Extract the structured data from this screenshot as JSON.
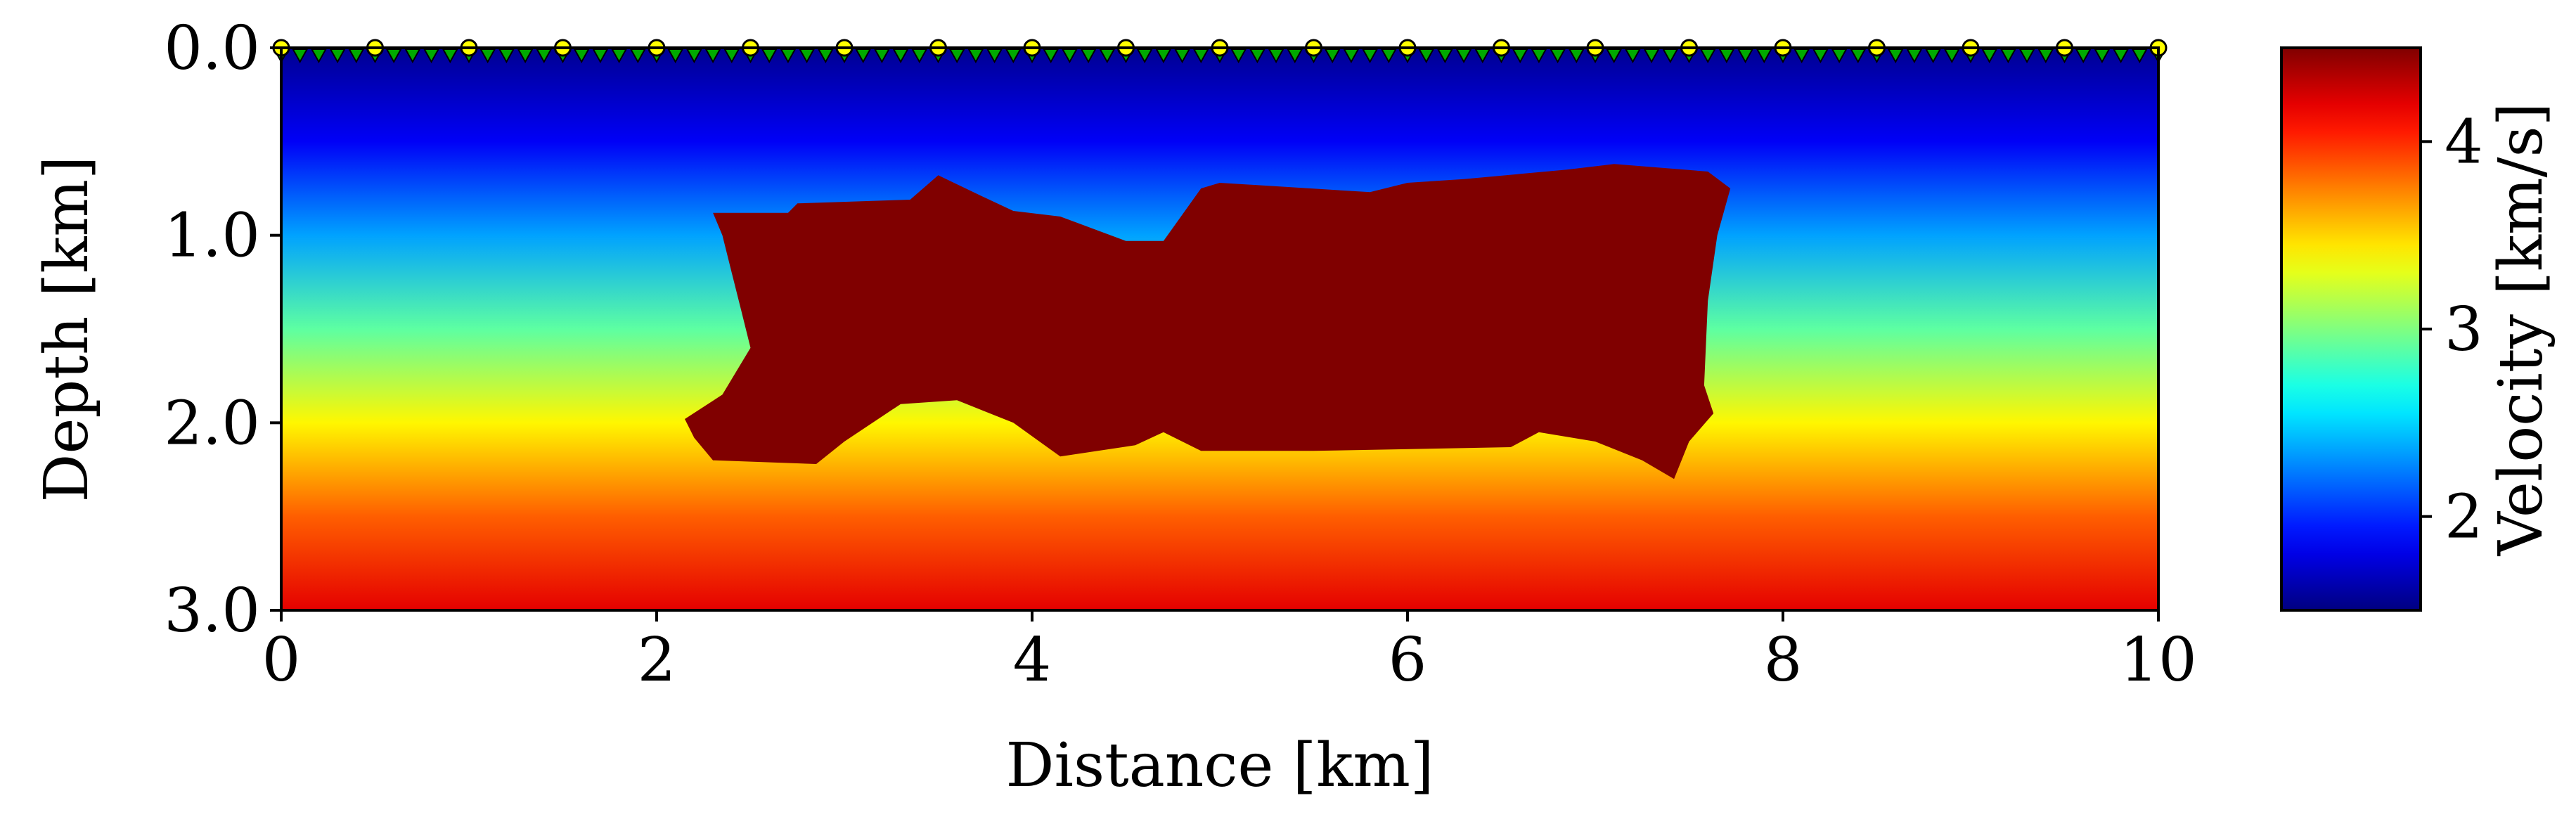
{
  "chart_data": {
    "type": "heatmap",
    "title": "",
    "xlabel": "Distance [km]",
    "ylabel": "Depth [km]",
    "xlim": [
      0,
      10
    ],
    "ylim": [
      3.0,
      0.0
    ],
    "xticks": [
      0,
      2,
      4,
      6,
      8,
      10
    ],
    "xtick_labels": [
      "0",
      "2",
      "4",
      "6",
      "8",
      "10"
    ],
    "yticks": [
      0.0,
      1.0,
      2.0,
      3.0
    ],
    "ytick_labels": [
      "0.0",
      "1.0",
      "2.0",
      "3.0"
    ],
    "colormap": "jet",
    "colorbar": {
      "label": "Velocity [km/s]",
      "range": [
        1.5,
        4.5
      ],
      "ticks": [
        2,
        3,
        4
      ],
      "tick_labels": [
        "2",
        "3",
        "4"
      ]
    },
    "background_velocity_profile": {
      "depth_km": [
        0.0,
        0.5,
        1.0,
        1.5,
        2.0,
        2.5,
        3.0
      ],
      "velocity_km_s": [
        1.55,
        1.85,
        2.35,
        2.9,
        3.4,
        3.85,
        4.2
      ]
    },
    "salt_body": {
      "velocity_km_s": 4.5,
      "color": "#800000",
      "outline": [
        [
          2.3,
          0.88
        ],
        [
          2.7,
          0.88
        ],
        [
          2.75,
          0.83
        ],
        [
          3.35,
          0.81
        ],
        [
          3.5,
          0.68
        ],
        [
          3.75,
          0.8
        ],
        [
          3.9,
          0.87
        ],
        [
          4.15,
          0.9
        ],
        [
          4.5,
          1.03
        ],
        [
          4.7,
          1.03
        ],
        [
          4.9,
          0.75
        ],
        [
          5.0,
          0.72
        ],
        [
          5.8,
          0.77
        ],
        [
          6.0,
          0.72
        ],
        [
          6.3,
          0.7
        ],
        [
          6.85,
          0.65
        ],
        [
          7.1,
          0.62
        ],
        [
          7.6,
          0.66
        ],
        [
          7.72,
          0.75
        ],
        [
          7.65,
          1.0
        ],
        [
          7.6,
          1.35
        ],
        [
          7.58,
          1.8
        ],
        [
          7.63,
          1.95
        ],
        [
          7.5,
          2.1
        ],
        [
          7.42,
          2.3
        ],
        [
          7.25,
          2.2
        ],
        [
          7.0,
          2.1
        ],
        [
          6.7,
          2.05
        ],
        [
          6.55,
          2.13
        ],
        [
          5.5,
          2.15
        ],
        [
          4.9,
          2.15
        ],
        [
          4.7,
          2.05
        ],
        [
          4.55,
          2.12
        ],
        [
          4.15,
          2.18
        ],
        [
          3.9,
          2.0
        ],
        [
          3.6,
          1.88
        ],
        [
          3.3,
          1.9
        ],
        [
          3.0,
          2.1
        ],
        [
          2.85,
          2.22
        ],
        [
          2.3,
          2.2
        ],
        [
          2.2,
          2.08
        ],
        [
          2.15,
          1.98
        ],
        [
          2.35,
          1.85
        ],
        [
          2.5,
          1.6
        ],
        [
          2.45,
          1.4
        ],
        [
          2.4,
          1.2
        ],
        [
          2.35,
          1.0
        ]
      ]
    },
    "series": [
      {
        "marker": "circle",
        "color": "#ffff00",
        "edge": "#000000",
        "x": [
          0,
          0.5,
          1,
          1.5,
          2,
          2.5,
          3,
          3.5,
          4,
          4.5,
          5,
          5.5,
          6,
          6.5,
          7,
          7.5,
          8,
          8.5,
          9,
          9.5,
          10
        ],
        "y": [
          0,
          0,
          0,
          0,
          0,
          0,
          0,
          0,
          0,
          0,
          0,
          0,
          0,
          0,
          0,
          0,
          0,
          0,
          0,
          0,
          0
        ]
      },
      {
        "marker": "triangle-down",
        "color": "#00aa00",
        "edge": "#000000",
        "x_start": 0,
        "x_end": 10,
        "x_step": 0.1,
        "y": 0
      }
    ]
  }
}
